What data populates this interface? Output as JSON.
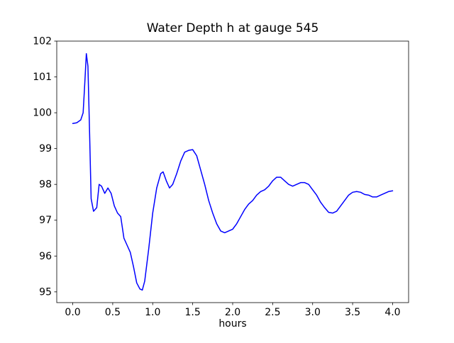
{
  "figure": {
    "background": "#ffffff",
    "axis_color": "#000000"
  },
  "chart_data": {
    "type": "line",
    "title": "Water Depth h at gauge 545",
    "xlabel": "hours",
    "ylabel": "",
    "grid": false,
    "legend": null,
    "line_color": "#0000ff",
    "xlim": [
      -0.2,
      4.2
    ],
    "ylim": [
      94.7,
      102.0
    ],
    "x_ticks": [
      0.0,
      0.5,
      1.0,
      1.5,
      2.0,
      2.5,
      3.0,
      3.5,
      4.0
    ],
    "x_tick_labels": [
      "0.0",
      "0.5",
      "1.0",
      "1.5",
      "2.0",
      "2.5",
      "3.0",
      "3.5",
      "4.0"
    ],
    "y_ticks": [
      95,
      96,
      97,
      98,
      99,
      100,
      101,
      102
    ],
    "y_tick_labels": [
      "95",
      "96",
      "97",
      "98",
      "99",
      "100",
      "101",
      "102"
    ],
    "series": [
      {
        "name": "water_depth_gauge_545",
        "x": [
          0.0,
          0.05,
          0.1,
          0.13,
          0.15,
          0.17,
          0.19,
          0.21,
          0.23,
          0.26,
          0.3,
          0.33,
          0.36,
          0.4,
          0.44,
          0.48,
          0.52,
          0.56,
          0.6,
          0.64,
          0.68,
          0.72,
          0.76,
          0.8,
          0.84,
          0.87,
          0.9,
          0.95,
          1.0,
          1.05,
          1.1,
          1.13,
          1.17,
          1.21,
          1.25,
          1.3,
          1.35,
          1.4,
          1.45,
          1.5,
          1.55,
          1.6,
          1.65,
          1.7,
          1.75,
          1.8,
          1.85,
          1.9,
          1.95,
          2.0,
          2.05,
          2.1,
          2.15,
          2.2,
          2.25,
          2.3,
          2.35,
          2.4,
          2.45,
          2.5,
          2.55,
          2.6,
          2.65,
          2.7,
          2.75,
          2.8,
          2.85,
          2.9,
          2.95,
          3.0,
          3.05,
          3.1,
          3.15,
          3.2,
          3.25,
          3.3,
          3.35,
          3.4,
          3.45,
          3.5,
          3.55,
          3.6,
          3.65,
          3.7,
          3.75,
          3.8,
          3.85,
          3.9,
          3.95,
          4.0
        ],
        "y": [
          99.7,
          99.72,
          99.8,
          100.0,
          100.8,
          101.65,
          101.3,
          99.5,
          97.6,
          97.25,
          97.35,
          98.0,
          97.95,
          97.75,
          97.9,
          97.75,
          97.4,
          97.2,
          97.1,
          96.5,
          96.3,
          96.1,
          95.7,
          95.25,
          95.08,
          95.05,
          95.3,
          96.2,
          97.2,
          97.9,
          98.3,
          98.35,
          98.1,
          97.9,
          98.0,
          98.3,
          98.65,
          98.9,
          98.95,
          98.97,
          98.8,
          98.4,
          98.0,
          97.55,
          97.2,
          96.9,
          96.7,
          96.65,
          96.7,
          96.75,
          96.9,
          97.1,
          97.3,
          97.45,
          97.55,
          97.7,
          97.8,
          97.85,
          97.95,
          98.1,
          98.2,
          98.2,
          98.1,
          98.0,
          97.95,
          98.0,
          98.05,
          98.05,
          98.0,
          97.85,
          97.7,
          97.5,
          97.35,
          97.22,
          97.2,
          97.25,
          97.4,
          97.55,
          97.7,
          97.78,
          97.8,
          97.78,
          97.72,
          97.7,
          97.65,
          97.65,
          97.7,
          97.75,
          97.8,
          97.82
        ]
      }
    ]
  }
}
